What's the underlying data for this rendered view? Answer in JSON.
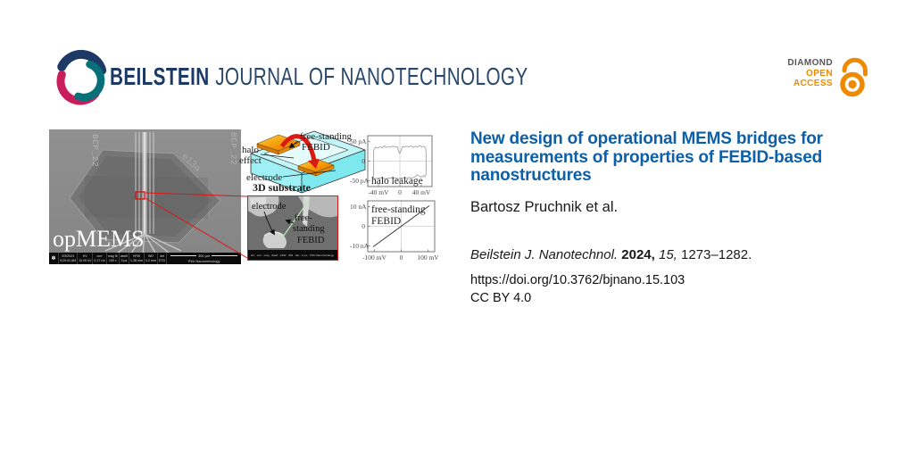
{
  "brand": {
    "name_bold": "BEILSTEIN",
    "name_rest": "JOURNAL OF NANOTECHNOLOGY",
    "colors": {
      "navy": "#1d3a66",
      "teal": "#077078",
      "crimson": "#c81e5b"
    }
  },
  "open_access": {
    "line1": "DIAMOND",
    "line2": "OPEN",
    "line3": "ACCESS",
    "orange": "#ef8a00",
    "gray": "#565658"
  },
  "article": {
    "title_lines": [
      "New design of operational MEMS bridges for",
      "measurements of properties of FEBID-based",
      "nanostructures"
    ],
    "title_color": "#0d5fa8",
    "authors": "Bartosz Pruchnik et al.",
    "citation": {
      "journal": "Beilstein J. Nanotechnol.",
      "year": "2024,",
      "volume": "15,",
      "pages": "1273–1282."
    },
    "doi": "https://doi.org/10.3762/bjnano.15.103",
    "license": "CC BY 4.0"
  },
  "figure": {
    "sem": {
      "watermark": "opMEMS",
      "corner_label_left": "BCP_22",
      "corner_label_right": "BCP_22",
      "sample_label": "e13a",
      "databar": {
        "icon_glyph": "✽",
        "cols": [
          [
            "2/9/2024",
            "9:29:41 AM"
          ],
          [
            "HV",
            "10.00 kV"
          ],
          [
            "curr",
            "0.17 nA"
          ],
          [
            "mag ⊞",
            "150 x"
          ],
          [
            "dwell",
            "3 μs"
          ],
          [
            "HFW",
            "1.38 mm"
          ],
          [
            "WD",
            "4.2 mm"
          ],
          [
            "det",
            "ETD"
          ]
        ],
        "scale": "300 μm",
        "credit": "PWr Nanometrology"
      }
    },
    "schematic": {
      "label_free_standing": "free-standing",
      "label_febid": "FEBID",
      "label_halo": "halo",
      "label_effect": "effect",
      "label_electrode": "electrode",
      "label_substrate": "3D substrate"
    },
    "inset": {
      "label_electrode": "electrode",
      "label_free": "free-",
      "label_standing": "standing",
      "label_febid": "FEBID",
      "databar_text": "HV · curr · mag · dwell · HFW · WD · det · 2 μm · PWr Nanometrology"
    }
  },
  "chart_data": [
    {
      "type": "line",
      "title": "halo leakage",
      "title_lines": [
        "halo leakage"
      ],
      "title_pos": "bottom-left",
      "xlim": [
        -60,
        60
      ],
      "ylim": [
        -65,
        65
      ],
      "xticks": [
        {
          "v": -40,
          "label": "-40 mV"
        },
        {
          "v": 0,
          "label": "0"
        },
        {
          "v": 40,
          "label": "40 mV"
        }
      ],
      "yticks": [
        {
          "v": 50,
          "label": "50 pA"
        },
        {
          "v": 0,
          "label": "0"
        },
        {
          "v": -50,
          "label": "-50 pA"
        }
      ],
      "grid": "center-crosshair",
      "legend": false,
      "series": [
        {
          "name": "halo leakage current loop",
          "color": "#ababab",
          "x": [
            -49,
            -49,
            -46,
            -42,
            -37,
            -33,
            -29,
            -25,
            -21,
            -17,
            -13,
            -9,
            -5,
            -3,
            -1,
            1,
            3,
            5,
            9,
            13,
            17,
            21,
            25,
            29,
            33,
            37,
            41,
            45,
            48,
            49,
            49,
            47,
            44,
            40,
            36,
            32,
            28,
            22,
            16,
            10,
            4,
            -2,
            -8,
            -14,
            -20,
            -26,
            -32,
            -38,
            -43,
            -47,
            -49
          ],
          "y": [
            -45,
            28,
            36,
            33,
            37,
            34,
            39,
            35,
            37,
            36,
            38,
            36,
            37,
            28,
            20,
            22,
            30,
            37,
            36,
            38,
            36,
            39,
            35,
            38,
            36,
            40,
            36,
            38,
            34,
            20,
            -34,
            -40,
            -37,
            -41,
            -38,
            -35,
            -41,
            -43,
            -42,
            -44,
            -43,
            -45,
            -43,
            -44,
            -43,
            -45,
            -44,
            -43,
            -44,
            -45,
            -45
          ]
        }
      ]
    },
    {
      "type": "line",
      "title": "free-standing FEBID",
      "title_lines": [
        "free-standing",
        "FEBID"
      ],
      "title_pos": "top-left",
      "xlim": [
        -125,
        125
      ],
      "ylim": [
        -13,
        13
      ],
      "xticks": [
        {
          "v": -100,
          "label": "-100 mV"
        },
        {
          "v": 0,
          "label": "0"
        },
        {
          "v": 100,
          "label": "100 mV"
        }
      ],
      "yticks": [
        {
          "v": 10,
          "label": "10 nA"
        },
        {
          "v": 0,
          "label": "0"
        },
        {
          "v": -10,
          "label": "-10 nA"
        }
      ],
      "grid": "center-crosshair",
      "legend": false,
      "series": [
        {
          "name": "free-standing FEBID ohmic I-V",
          "color": "#3a3a3a",
          "x": [
            -105,
            105
          ],
          "y": [
            -10.5,
            10.5
          ]
        }
      ]
    }
  ]
}
